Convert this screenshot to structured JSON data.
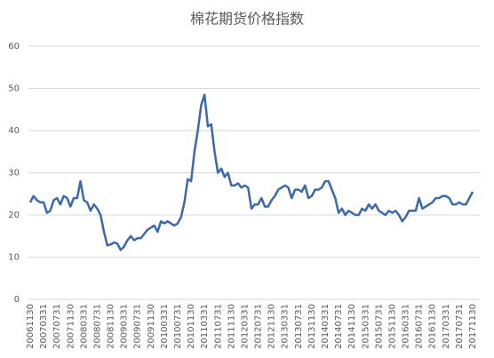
{
  "chart_data": {
    "type": "line",
    "title": "棉花期货价格指数",
    "categories": [
      "20061130",
      null,
      null,
      null,
      "20070331",
      null,
      null,
      null,
      "20070731",
      null,
      null,
      null,
      "20071130",
      null,
      null,
      null,
      "20080331",
      null,
      null,
      null,
      "20080731",
      null,
      null,
      null,
      "20081130",
      null,
      null,
      null,
      "20090331",
      null,
      null,
      null,
      "20090731",
      null,
      null,
      null,
      "20091130",
      null,
      null,
      null,
      "20100331",
      null,
      null,
      null,
      "20100731",
      null,
      null,
      null,
      "20101130",
      null,
      null,
      null,
      "20110331",
      null,
      null,
      null,
      "20110731",
      null,
      null,
      null,
      "20111130",
      null,
      null,
      null,
      "20120331",
      null,
      null,
      null,
      "20120731",
      null,
      null,
      null,
      "20121130",
      null,
      null,
      null,
      "20130331",
      null,
      null,
      null,
      "20130731",
      null,
      null,
      null,
      "20131130",
      null,
      null,
      null,
      "20140331",
      null,
      null,
      null,
      "20140731",
      null,
      null,
      null,
      "20141130",
      null,
      null,
      null,
      "20150331",
      null,
      null,
      null,
      "20150731",
      null,
      null,
      null,
      "20151130",
      null,
      null,
      null,
      "20160331",
      null,
      null,
      null,
      "20160731",
      null,
      null,
      null,
      "20161130",
      null,
      null,
      null,
      "20170331",
      null,
      null,
      null,
      "20170731",
      null,
      null,
      null,
      "20171130"
    ],
    "series": [
      {
        "name": "棉花期货价格指数",
        "color": "#3d69a8",
        "values": [
          23,
          24.5,
          23.5,
          23,
          23,
          20.5,
          21,
          23.5,
          24,
          22.5,
          24.5,
          24,
          22,
          24,
          24,
          28,
          23.5,
          23,
          21,
          22.5,
          21.5,
          20,
          16,
          12.8,
          13,
          13.5,
          13.2,
          11.7,
          12.5,
          14,
          15,
          14,
          14.5,
          14.5,
          15.5,
          16.5,
          17,
          17.5,
          16,
          18.5,
          18,
          18.5,
          18,
          17.5,
          18,
          19.5,
          23,
          28.5,
          28,
          35,
          40,
          46,
          48.5,
          41,
          41.5,
          35,
          30,
          31,
          29,
          30,
          27,
          27,
          27.5,
          26.5,
          27,
          26.5,
          21.5,
          22.5,
          22.5,
          24,
          22,
          22,
          23.5,
          24.5,
          26,
          26.5,
          27,
          26.5,
          24,
          26,
          26,
          25.5,
          27,
          24,
          24.5,
          26,
          26,
          26.5,
          28,
          28,
          26,
          24,
          20.5,
          21.5,
          20,
          21,
          20.5,
          20,
          20,
          21.5,
          21,
          22.5,
          21.5,
          22.5,
          21,
          20.5,
          20,
          21,
          20.5,
          21,
          20,
          18.5,
          19.5,
          21,
          21,
          21,
          24,
          21.5,
          22,
          22.5,
          23,
          24,
          24,
          24.5,
          24.5,
          24,
          22.5,
          22.5,
          23,
          22.5,
          22.5,
          24,
          25.5
        ]
      }
    ],
    "ylim": [
      0,
      60
    ],
    "yticks": [
      0,
      10,
      20,
      30,
      40,
      50,
      60
    ],
    "grid": true
  }
}
